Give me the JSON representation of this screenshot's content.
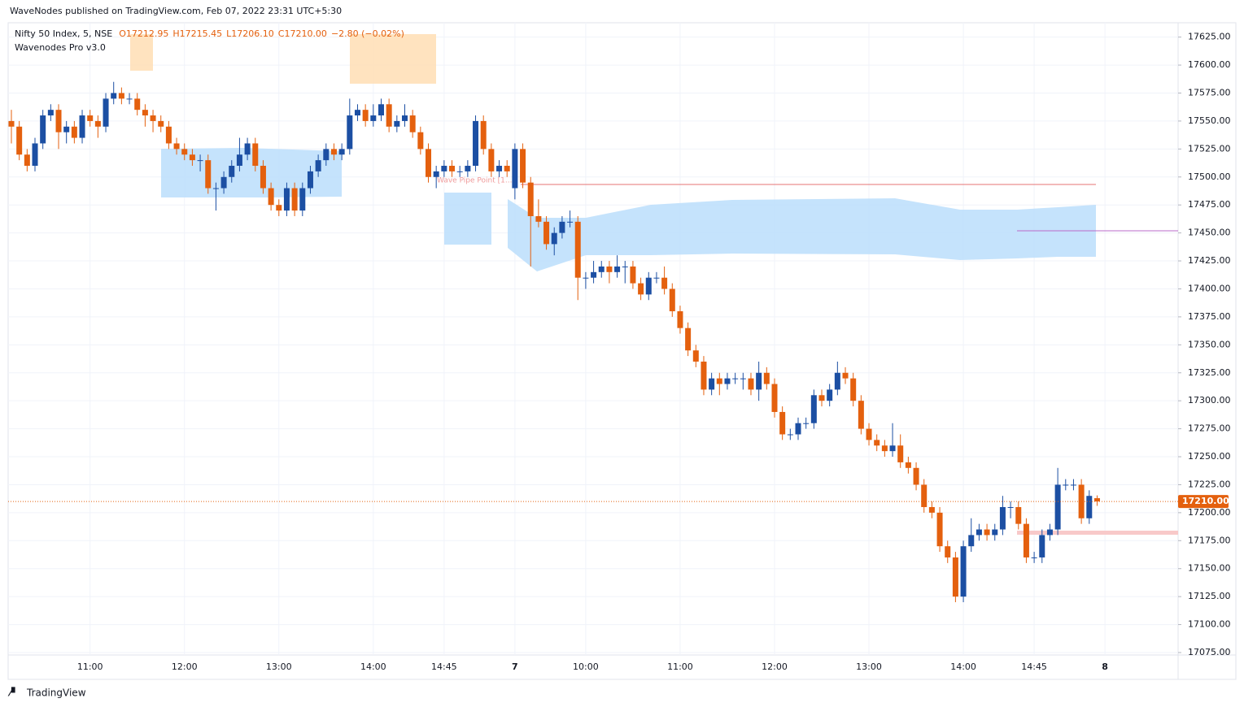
{
  "header": "WaveNodes published on TradingView.com, Feb 07, 2022 23:31 UTC+5:30",
  "footer": "TradingView",
  "chart_data": {
    "type": "candlestick",
    "title": "Nifty 50 Index, 5, NSE",
    "legend_values": [
      "O17212.95",
      "H17215.45",
      "L17206.10",
      "C17210.00",
      "−2.80 (−0.02%)"
    ],
    "indicator": "Wavenodes Pro v3.0",
    "annotation": "Wave Pipe Point [1...]",
    "last_price_label": "17210.00",
    "up_color": "#1c4fa3",
    "down_color": "#e4600e",
    "grid": true,
    "ylim": [
      17075,
      17640
    ],
    "yticks": [
      {
        "value": 17075,
        "label": "17075.00"
      },
      {
        "value": 17100,
        "label": "17100.00"
      },
      {
        "value": 17125,
        "label": "17125.00"
      },
      {
        "value": 17150,
        "label": "17150.00"
      },
      {
        "value": 17175,
        "label": "17175.00"
      },
      {
        "value": 17200,
        "label": "17200.00"
      },
      {
        "value": 17225,
        "label": "17225.00"
      },
      {
        "value": 17250,
        "label": "17250.00"
      },
      {
        "value": 17275,
        "label": "17275.00"
      },
      {
        "value": 17300,
        "label": "17300.00"
      },
      {
        "value": 17325,
        "label": "17325.00"
      },
      {
        "value": 17350,
        "label": "17350.00"
      },
      {
        "value": 17375,
        "label": "17375.00"
      },
      {
        "value": 17400,
        "label": "17400.00"
      },
      {
        "value": 17425,
        "label": "17425.00"
      },
      {
        "value": 17450,
        "label": "17450.00"
      },
      {
        "value": 17475,
        "label": "17475.00"
      },
      {
        "value": 17500,
        "label": "17500.00"
      },
      {
        "value": 17525,
        "label": "17525.00"
      },
      {
        "value": 17550,
        "label": "17550.00"
      },
      {
        "value": 17575,
        "label": "17575.00"
      },
      {
        "value": 17600,
        "label": "17600.00"
      },
      {
        "value": 17625,
        "label": "17625.00"
      }
    ],
    "xticks": [
      {
        "value": 10,
        "label": "11:00"
      },
      {
        "value": 22,
        "label": "12:00"
      },
      {
        "value": 34,
        "label": "13:00"
      },
      {
        "value": 46,
        "label": "14:00"
      },
      {
        "value": 55,
        "label": "14:45"
      },
      {
        "value": 64,
        "label": "7"
      },
      {
        "value": 73,
        "label": "10:00"
      },
      {
        "value": 85,
        "label": "11:00"
      },
      {
        "value": 97,
        "label": "12:00"
      },
      {
        "value": 109,
        "label": "13:00"
      },
      {
        "value": 121,
        "label": "14:00"
      },
      {
        "value": 130,
        "label": "14:45"
      },
      {
        "value": 139,
        "label": "8"
      }
    ],
    "open": [
      17550,
      17545,
      17520,
      17510,
      17530,
      17555,
      17560,
      17540,
      17545,
      17535,
      17555,
      17550,
      17545,
      17570,
      17575,
      17570,
      17570,
      17560,
      17555,
      17550,
      17545,
      17530,
      17525,
      17520,
      17515,
      17515,
      17490,
      17490,
      17500,
      17510,
      17520,
      17530,
      17510,
      17490,
      17475,
      17470,
      17490,
      17470,
      17490,
      17505,
      17515,
      17525,
      17520,
      17525,
      17555,
      17560,
      17550,
      17555,
      17565,
      17545,
      17550,
      17555,
      17540,
      17525,
      17500,
      17505,
      17510,
      17505,
      17505,
      17510,
      17550,
      17525,
      17505,
      17510,
      17490,
      17525,
      17495,
      17465,
      17460,
      17440,
      17450,
      17460,
      17460,
      17410,
      17410,
      17415,
      17420,
      17415,
      17420,
      17420,
      17405,
      17395,
      17410,
      17410,
      17400,
      17380,
      17365,
      17345,
      17335,
      17310,
      17320,
      17315,
      17320,
      17320,
      17320,
      17310,
      17325,
      17315,
      17290,
      17270,
      17270,
      17280,
      17280,
      17305,
      17300,
      17310,
      17325,
      17320,
      17300,
      17275,
      17265,
      17260,
      17255,
      17260,
      17245,
      17240,
      17225,
      17205,
      17200,
      17170,
      17160,
      17125,
      17170,
      17180,
      17185,
      17180,
      17185,
      17205,
      17205,
      17190,
      17160,
      17160,
      17180,
      17185,
      17225,
      17225,
      17225,
      17195,
      17212.95
    ],
    "high": [
      17560,
      17550,
      17525,
      17535,
      17560,
      17565,
      17565,
      17550,
      17550,
      17560,
      17560,
      17555,
      17575,
      17585,
      17580,
      17575,
      17575,
      17565,
      17560,
      17555,
      17550,
      17535,
      17530,
      17525,
      17520,
      17520,
      17495,
      17505,
      17515,
      17535,
      17535,
      17535,
      17515,
      17495,
      17480,
      17495,
      17495,
      17495,
      17510,
      17520,
      17530,
      17530,
      17530,
      17570,
      17565,
      17565,
      17565,
      17570,
      17570,
      17555,
      17565,
      17560,
      17545,
      17530,
      17510,
      17515,
      17515,
      17510,
      17515,
      17555,
      17555,
      17530,
      17515,
      17515,
      17530,
      17530,
      17500,
      17480,
      17465,
      17455,
      17465,
      17470,
      17465,
      17415,
      17425,
      17425,
      17425,
      17430,
      17425,
      17425,
      17410,
      17415,
      17415,
      17420,
      17405,
      17385,
      17370,
      17350,
      17340,
      17325,
      17325,
      17325,
      17325,
      17325,
      17325,
      17335,
      17330,
      17320,
      17295,
      17275,
      17285,
      17285,
      17310,
      17310,
      17315,
      17335,
      17330,
      17325,
      17305,
      17280,
      17270,
      17265,
      17280,
      17270,
      17250,
      17245,
      17230,
      17210,
      17205,
      17175,
      17165,
      17175,
      17195,
      17190,
      17190,
      17190,
      17215,
      17210,
      17210,
      17195,
      17165,
      17185,
      17190,
      17240,
      17230,
      17230,
      17230,
      17220,
      17215.45
    ],
    "low": [
      17530,
      17515,
      17505,
      17505,
      17525,
      17550,
      17525,
      17530,
      17530,
      17530,
      17545,
      17535,
      17540,
      17565,
      17565,
      17565,
      17555,
      17545,
      17540,
      17540,
      17525,
      17520,
      17515,
      17510,
      17505,
      17485,
      17470,
      17485,
      17495,
      17505,
      17515,
      17505,
      17485,
      17470,
      17465,
      17465,
      17465,
      17465,
      17485,
      17500,
      17510,
      17515,
      17515,
      17520,
      17550,
      17545,
      17545,
      17550,
      17540,
      17540,
      17545,
      17535,
      17520,
      17495,
      17490,
      17500,
      17500,
      17500,
      17500,
      17505,
      17520,
      17500,
      17500,
      17500,
      17480,
      17490,
      17420,
      17455,
      17435,
      17430,
      17445,
      17455,
      17390,
      17400,
      17405,
      17410,
      17405,
      17410,
      17405,
      17400,
      17390,
      17390,
      17405,
      17395,
      17375,
      17360,
      17340,
      17330,
      17305,
      17305,
      17305,
      17310,
      17315,
      17310,
      17305,
      17300,
      17310,
      17285,
      17265,
      17265,
      17265,
      17275,
      17275,
      17295,
      17295,
      17305,
      17315,
      17295,
      17270,
      17260,
      17255,
      17250,
      17250,
      17240,
      17235,
      17220,
      17200,
      17195,
      17165,
      17155,
      17120,
      17120,
      17165,
      17175,
      17175,
      17175,
      17180,
      17195,
      17185,
      17155,
      17155,
      17155,
      17175,
      17180,
      17220,
      17220,
      17190,
      17190,
      17206.1
    ],
    "close": [
      17545,
      17520,
      17510,
      17530,
      17555,
      17560,
      17540,
      17545,
      17535,
      17555,
      17550,
      17545,
      17570,
      17575,
      17570,
      17570,
      17560,
      17555,
      17550,
      17545,
      17530,
      17525,
      17520,
      17515,
      17515,
      17490,
      17490,
      17500,
      17510,
      17520,
      17530,
      17510,
      17490,
      17475,
      17470,
      17490,
      17470,
      17490,
      17505,
      17515,
      17525,
      17520,
      17525,
      17555,
      17560,
      17550,
      17555,
      17565,
      17545,
      17550,
      17555,
      17540,
      17525,
      17500,
      17505,
      17510,
      17505,
      17505,
      17510,
      17550,
      17525,
      17505,
      17510,
      17505,
      17525,
      17495,
      17465,
      17460,
      17440,
      17450,
      17460,
      17460,
      17410,
      17410,
      17415,
      17420,
      17415,
      17420,
      17420,
      17405,
      17395,
      17410,
      17410,
      17400,
      17380,
      17365,
      17345,
      17335,
      17310,
      17320,
      17315,
      17320,
      17320,
      17320,
      17310,
      17325,
      17315,
      17290,
      17270,
      17270,
      17280,
      17280,
      17305,
      17300,
      17310,
      17325,
      17320,
      17300,
      17275,
      17265,
      17260,
      17255,
      17260,
      17245,
      17240,
      17225,
      17205,
      17200,
      17170,
      17160,
      17125,
      17170,
      17180,
      17185,
      17180,
      17185,
      17205,
      17205,
      17190,
      17160,
      17160,
      17180,
      17185,
      17225,
      17225,
      17225,
      17195,
      17215,
      17210
    ]
  }
}
